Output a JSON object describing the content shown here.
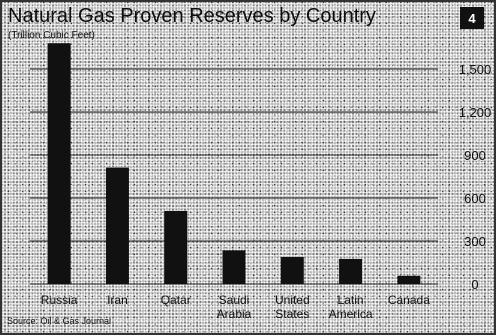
{
  "chart_data": {
    "type": "bar",
    "title": "Natural Gas Proven Reserves by Country",
    "subtitle": "(Trillion Cubic Feet)",
    "categories": [
      [
        "Russia"
      ],
      [
        "Iran"
      ],
      [
        "Qatar"
      ],
      [
        "Saudi",
        "Arabia"
      ],
      [
        "United",
        "States"
      ],
      [
        "Latin",
        "America"
      ],
      [
        "Canada"
      ]
    ],
    "values": [
      1680,
      812,
      510,
      235,
      189,
      175,
      57
    ],
    "ylim": [
      0,
      1800
    ],
    "yticks": [
      0,
      300,
      600,
      900,
      1200,
      1500
    ],
    "ytick_labels": [
      "0",
      "300",
      "600",
      "900",
      "1,200",
      "1,500"
    ],
    "grid": true,
    "bar_color": "#111111",
    "gridline_color": "#1a1a1a",
    "source": "Source: Oil & Gas Journal",
    "badge": "4",
    "badge_color": "#111111"
  }
}
